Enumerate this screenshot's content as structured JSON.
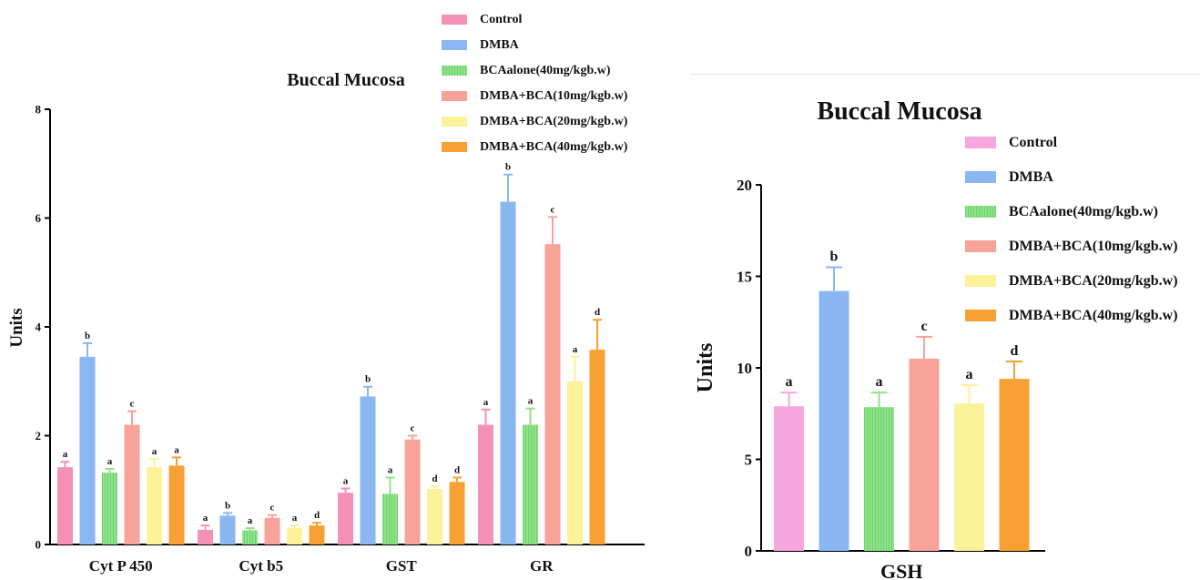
{
  "chart_data": [
    {
      "type": "bar",
      "title": "Buccal Mucosa",
      "xlabel": "",
      "ylabel": "Units",
      "ylim": [
        0,
        8
      ],
      "yticks": [
        0,
        2,
        4,
        6,
        8
      ],
      "grid": false,
      "legend": "top-center",
      "categories": [
        "Cyt P 450",
        "Cyt b5",
        "GST",
        "GR"
      ],
      "series": [
        {
          "name": "Control",
          "color": "#f590b7",
          "hatch": false,
          "values": [
            1.42,
            0.27,
            0.95,
            2.2
          ],
          "errors": [
            0.1,
            0.08,
            0.08,
            0.28
          ],
          "letters": [
            "a",
            "a",
            "a",
            "a"
          ]
        },
        {
          "name": "DMBA",
          "color": "#8ab6f2",
          "hatch": false,
          "values": [
            3.45,
            0.53,
            2.72,
            6.3
          ],
          "errors": [
            0.25,
            0.05,
            0.18,
            0.5
          ],
          "letters": [
            "b",
            "b",
            "b",
            "b"
          ]
        },
        {
          "name": "BCAalone(40mg/kgb.w)",
          "color": "#8fe38b",
          "hatch": true,
          "values": [
            1.32,
            0.26,
            0.93,
            2.2
          ],
          "errors": [
            0.07,
            0.04,
            0.3,
            0.3
          ],
          "letters": [
            "a",
            "a",
            "a",
            "a"
          ]
        },
        {
          "name": "DMBA+BCA(10mg/kgb.w)",
          "color": "#f7a39a",
          "hatch": false,
          "values": [
            2.2,
            0.49,
            1.93,
            5.52
          ],
          "errors": [
            0.25,
            0.05,
            0.07,
            0.5
          ],
          "letters": [
            "c",
            "c",
            "c",
            "c"
          ]
        },
        {
          "name": "DMBA+BCA(20mg/kgb.w)",
          "color": "#fcf29a",
          "hatch": false,
          "values": [
            1.42,
            0.3,
            1.02,
            3.0
          ],
          "errors": [
            0.15,
            0.05,
            0.05,
            0.45
          ],
          "letters": [
            "a",
            "a",
            "d",
            "a"
          ]
        },
        {
          "name": "DMBA+BCA(40mg/kgb.w)",
          "color": "#f7a135",
          "hatch": false,
          "values": [
            1.45,
            0.35,
            1.15,
            3.58
          ],
          "errors": [
            0.15,
            0.05,
            0.08,
            0.55
          ],
          "letters": [
            "a",
            "d",
            "d",
            "d"
          ]
        }
      ]
    },
    {
      "type": "bar",
      "title": "Buccal Mucosa",
      "xlabel": "",
      "ylabel": "Units",
      "ylim": [
        0,
        20
      ],
      "yticks": [
        0,
        5,
        10,
        15,
        20
      ],
      "grid": false,
      "legend": "top-right",
      "categories": [
        "GSH"
      ],
      "series": [
        {
          "name": "Control",
          "color": "#f7a6e0",
          "hatch": false,
          "values": [
            7.9
          ],
          "errors": [
            0.75
          ],
          "letters": [
            "a"
          ]
        },
        {
          "name": "DMBA",
          "color": "#8ab6f2",
          "hatch": false,
          "values": [
            14.2
          ],
          "errors": [
            1.3
          ],
          "letters": [
            "b"
          ]
        },
        {
          "name": "BCAalone(40mg/kgb.w)",
          "color": "#8fe38b",
          "hatch": true,
          "values": [
            7.85
          ],
          "errors": [
            0.8
          ],
          "letters": [
            "a"
          ]
        },
        {
          "name": "DMBA+BCA(10mg/kgb.w)",
          "color": "#f7a39a",
          "hatch": false,
          "values": [
            10.5
          ],
          "errors": [
            1.2
          ],
          "letters": [
            "c"
          ]
        },
        {
          "name": "DMBA+BCA(20mg/kgb.w)",
          "color": "#fcf29a",
          "hatch": false,
          "values": [
            8.05
          ],
          "errors": [
            1.0
          ],
          "letters": [
            "a"
          ]
        },
        {
          "name": "DMBA+BCA(40mg/kgb.w)",
          "color": "#f7a135",
          "hatch": false,
          "values": [
            9.4
          ],
          "errors": [
            0.95
          ],
          "letters": [
            "d"
          ]
        }
      ]
    }
  ]
}
